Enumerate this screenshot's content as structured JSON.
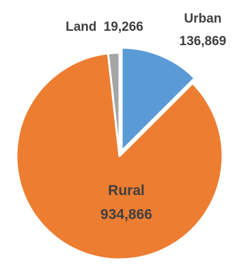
{
  "chart_data": {
    "type": "pie",
    "title": "",
    "legend": "none",
    "slices": [
      {
        "name": "Urban",
        "value": 136869,
        "value_label": "136,869",
        "color": "#5B9BD5",
        "exploded": true
      },
      {
        "name": "Rural",
        "value": 934866,
        "value_label": "934,866",
        "color": "#ED7D31",
        "exploded": false
      },
      {
        "name": "Land",
        "value": 19266,
        "value_label": "19,266",
        "color": "#A5A5A5",
        "exploded": false
      }
    ]
  }
}
